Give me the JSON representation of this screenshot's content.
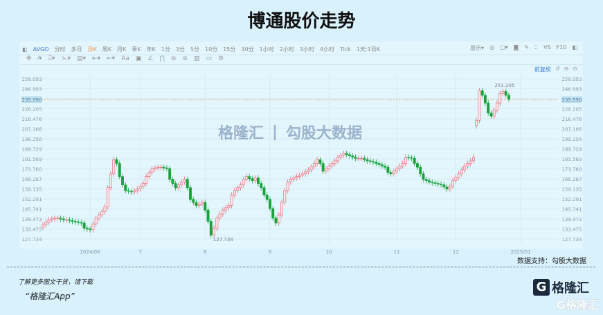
{
  "title": "博通股价走势",
  "toolbar": {
    "symbol": "AVGO",
    "periods": [
      "分时",
      "多日",
      "日K",
      "周K",
      "月K",
      "季K",
      "年K",
      "1分",
      "3分",
      "5分",
      "10分",
      "15分",
      "30分",
      "1小时",
      "2小时",
      "3小时",
      "4小时",
      "Tick",
      "1天:1日K"
    ],
    "active": "日K",
    "right": [
      "显示▾",
      "◎",
      "▢▾",
      "◙",
      "✎",
      "⁚⁚",
      "VS",
      "F10",
      "◧"
    ],
    "tools": [
      "✥",
      "⁄▾",
      "⍁▾",
      "⋋▾",
      "▤▾",
      "⇤▾",
      "←▾",
      "Aa",
      "▣",
      "∠",
      "⋂",
      "⊖",
      "⊘",
      "▥",
      "▭",
      "⚙"
    ],
    "adjust": "前复权",
    "adjust_icons": [
      "↺",
      "⊖",
      "⊙"
    ]
  },
  "watermark": {
    "brand": "格隆汇",
    "partner": "勾股大数据"
  },
  "chart_data": {
    "type": "candlestick",
    "scale": "log",
    "ylim": [
      127.734,
      258.093
    ],
    "y_ticks": [
      "258.093",
      "246.993",
      "235.590",
      "226.205",
      "216.476",
      "207.166",
      "198.256",
      "189.729",
      "181.569",
      "173.760",
      "166.287",
      "159.135",
      "152.291",
      "145.741",
      "139.473",
      "133.475",
      "127.734"
    ],
    "x_ticks": [
      {
        "label": "2024/06",
        "i": 16
      },
      {
        "label": "7",
        "i": 33
      },
      {
        "label": "8",
        "i": 55
      },
      {
        "label": "9",
        "i": 77
      },
      {
        "label": "10",
        "i": 97
      },
      {
        "label": "11",
        "i": 120
      },
      {
        "label": "12",
        "i": 140
      },
      {
        "label": "2025/01",
        "i": 162
      }
    ],
    "current_price": "235.590",
    "max_label": "251.205",
    "min_label": "127.734",
    "up_color": "#e8707c",
    "down_color": "#19a33a",
    "current_line_color": "#f0a060",
    "closes": [
      136,
      137.5,
      139,
      139.5,
      140,
      140,
      139.5,
      139,
      139,
      138.5,
      138,
      137.7,
      137.3,
      137,
      134,
      133.5,
      133,
      136.5,
      140,
      142,
      144,
      147,
      160,
      170,
      181,
      178,
      168,
      162,
      158,
      157.5,
      157,
      158,
      159,
      161,
      163,
      168,
      171,
      174,
      174.5,
      175,
      175,
      174.5,
      174,
      166,
      163,
      160,
      162,
      164,
      166,
      160,
      152,
      150,
      148,
      149,
      150,
      145,
      138,
      130,
      134,
      140,
      142.5,
      145,
      146.5,
      148,
      155,
      158,
      160,
      162,
      166,
      168,
      166.5,
      165,
      167,
      163,
      160,
      155,
      152,
      146,
      140,
      137,
      142,
      150,
      158,
      164,
      166,
      167,
      168,
      169,
      170,
      171.5,
      173,
      175.5,
      178,
      181,
      178,
      172,
      174,
      176,
      178,
      180,
      183,
      184.5,
      186,
      185,
      184,
      183,
      182,
      182,
      182,
      181,
      180,
      179.5,
      179,
      178,
      177,
      176,
      175,
      171,
      170,
      172,
      174,
      176,
      178,
      183,
      182.5,
      182,
      178,
      175,
      170,
      166,
      165,
      164,
      163.5,
      163,
      162.5,
      162,
      160.5,
      159,
      161,
      165,
      167.5,
      170,
      173,
      176,
      178,
      180,
      183,
      215,
      245,
      240,
      232,
      222,
      219,
      225,
      232,
      242,
      244,
      240,
      236
    ]
  },
  "source": "数据支持：勾股大数据",
  "footer": {
    "line1": "了解更多图文干货，请下载",
    "line2": "“格隆汇App”"
  }
}
